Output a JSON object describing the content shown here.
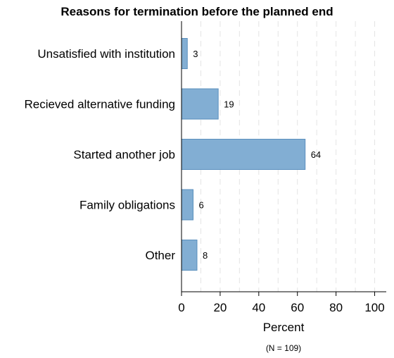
{
  "chart_data": {
    "type": "bar",
    "orientation": "horizontal",
    "title": "Reasons for termination before the planned end",
    "categories": [
      "Unsatisfied with institution",
      "Recieved alternative funding",
      "Started another job",
      "Family obligations",
      "Other"
    ],
    "values": [
      3,
      19,
      64,
      6,
      8
    ],
    "value_labels": [
      "3",
      "19",
      "64",
      "6",
      "8"
    ],
    "xlabel": "Percent",
    "note": "(N = 109)",
    "xlim": [
      0,
      106
    ],
    "xticks": [
      0,
      20,
      40,
      60,
      80,
      100
    ],
    "xtick_labels": [
      "0",
      "20",
      "40",
      "60",
      "80",
      "100"
    ],
    "grid": "vertical dashed",
    "bar_color": "#82aed3",
    "bar_edge_color": "#5a8fbd"
  }
}
